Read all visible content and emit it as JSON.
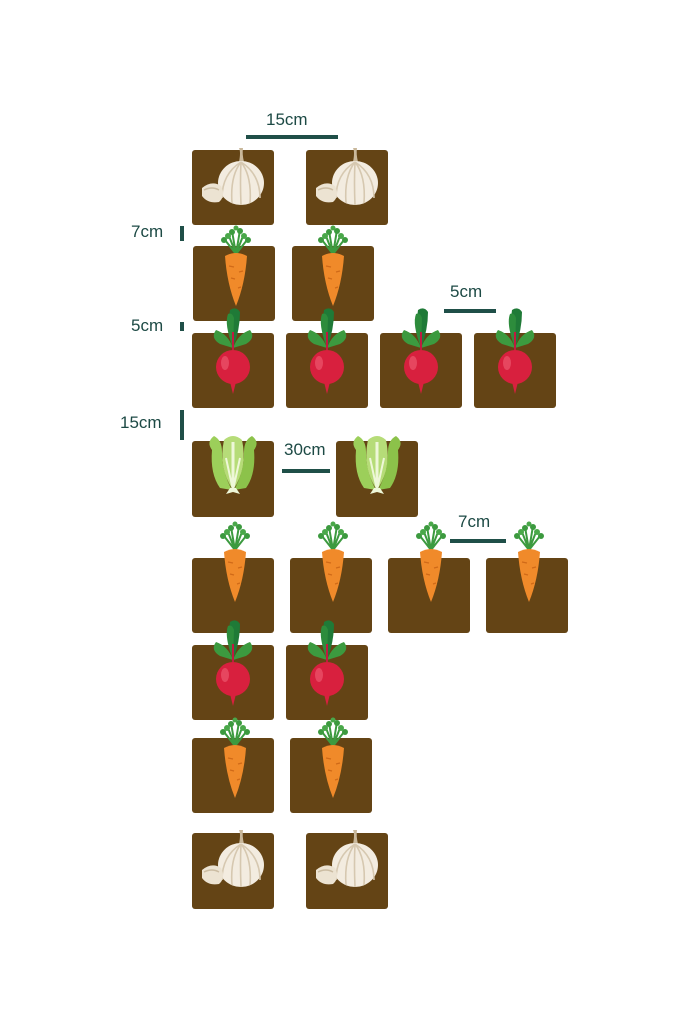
{
  "spacing_labels": {
    "garlic_gap": "15cm",
    "garlic_carrot_gap": "7cm",
    "carrot_radish_gap": "5cm",
    "radish_gap": "5cm",
    "radish_lettuce_gap": "15cm",
    "lettuce_gap": "30cm",
    "carrot_gap": "7cm"
  },
  "plants": [
    "garlic",
    "carrot",
    "radish",
    "lettuce"
  ],
  "colors": {
    "soil": "#644415",
    "label_text": "#1d4a45",
    "measure_bar": "#1f4f48",
    "carrot": "#f08a2a",
    "radish": "#d8203e",
    "leaf": "#3c9a3f",
    "lettuce": "#9ccf5a",
    "garlic": "#f3ece0"
  }
}
